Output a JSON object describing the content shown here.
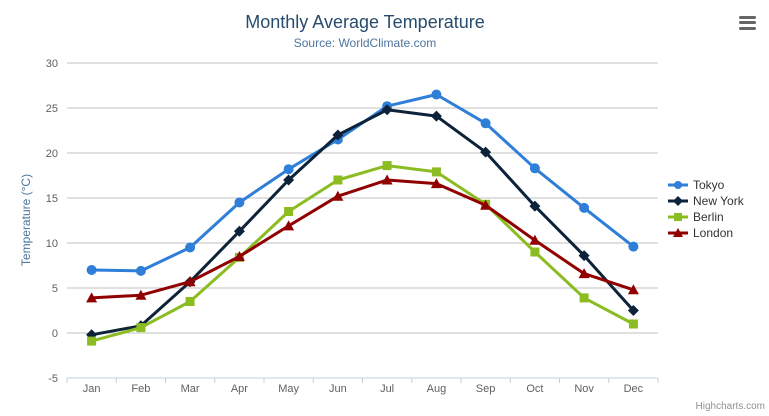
{
  "chart_data": {
    "type": "line",
    "title": "Monthly Average Temperature",
    "subtitle": "Source: WorldClimate.com",
    "categories": [
      "Jan",
      "Feb",
      "Mar",
      "Apr",
      "May",
      "Jun",
      "Jul",
      "Aug",
      "Sep",
      "Oct",
      "Nov",
      "Dec"
    ],
    "xlabel": "",
    "ylabel": "Temperature (°C)",
    "ylim": [
      -5,
      30
    ],
    "yticks": [
      -5,
      0,
      5,
      10,
      15,
      20,
      25,
      30
    ],
    "grid": true,
    "legend_position": "right",
    "series": [
      {
        "name": "Tokyo",
        "color": "#2f7ed8",
        "marker": "circle",
        "values": [
          7.0,
          6.9,
          9.5,
          14.5,
          18.2,
          21.5,
          25.2,
          26.5,
          23.3,
          18.3,
          13.9,
          9.6
        ]
      },
      {
        "name": "New York",
        "color": "#0d233a",
        "marker": "diamond",
        "values": [
          -0.2,
          0.8,
          5.7,
          11.3,
          17.0,
          22.0,
          24.8,
          24.1,
          20.1,
          14.1,
          8.6,
          2.5
        ]
      },
      {
        "name": "Berlin",
        "color": "#8bbc21",
        "marker": "square",
        "values": [
          -0.9,
          0.6,
          3.5,
          8.4,
          13.5,
          17.0,
          18.6,
          17.9,
          14.3,
          9.0,
          3.9,
          1.0
        ]
      },
      {
        "name": "London",
        "color": "#910000",
        "marker": "triangle",
        "values": [
          3.9,
          4.2,
          5.7,
          8.5,
          11.9,
          15.2,
          17.0,
          16.6,
          14.2,
          10.3,
          6.6,
          4.8
        ]
      }
    ]
  },
  "credits": {
    "label": "Highcharts.com"
  },
  "icons": {
    "menu": "hamburger-menu-icon"
  },
  "style_colors": {
    "title": "#274b6d",
    "subtitle": "#4d759e",
    "axis_title": "#4d759e",
    "axis_label": "#606060",
    "grid_line": "#c0c0c0",
    "axis_line": "#c0d0e0",
    "legend_text": "#333333",
    "credits": "#909090",
    "menu_icon": "#666666",
    "background": "#ffffff"
  }
}
